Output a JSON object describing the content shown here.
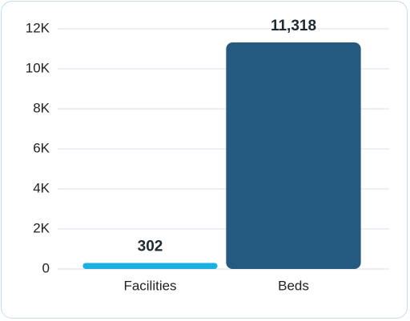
{
  "chart_data": {
    "type": "bar",
    "categories": [
      "Facilities",
      "Beds"
    ],
    "values": [
      302,
      11318
    ],
    "value_labels": [
      "302",
      "11,318"
    ],
    "colors": [
      "#1ab0e0",
      "#245a80"
    ],
    "ylim": [
      0,
      12000
    ],
    "yticks": [
      0,
      {
        "value": 2000,
        "label": "2K"
      },
      {
        "value": 4000,
        "label": "4K"
      },
      {
        "value": 6000,
        "label": "6K"
      },
      {
        "value": 8000,
        "label": "8K"
      },
      {
        "value": 10000,
        "label": "10K"
      },
      {
        "value": 12000,
        "label": "12K"
      }
    ],
    "grid": true
  }
}
